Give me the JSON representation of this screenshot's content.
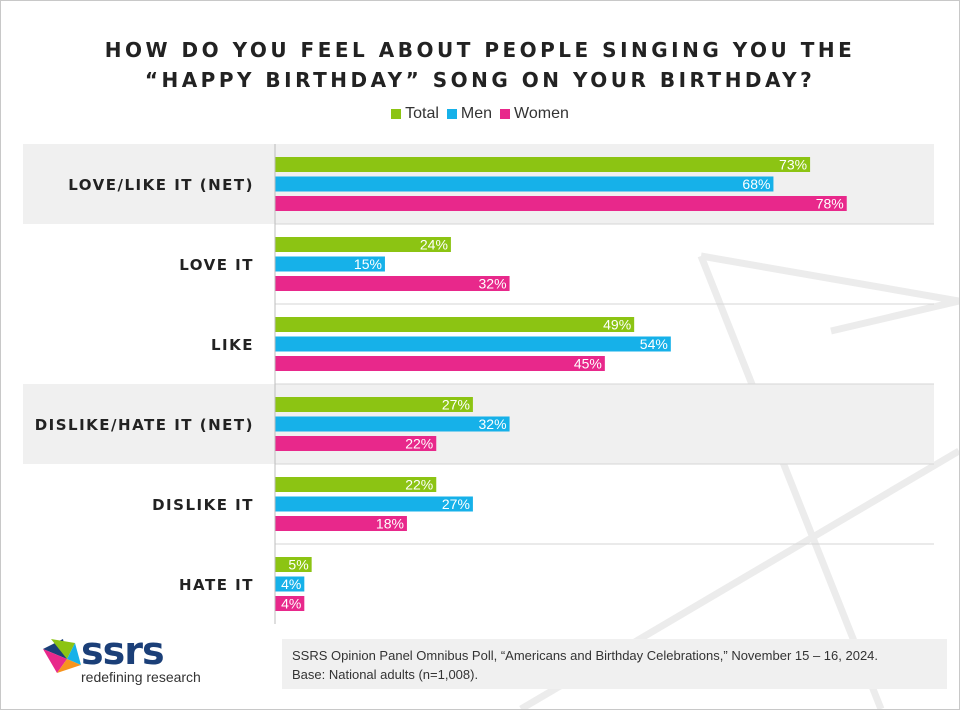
{
  "title_lines": [
    "HOW DO YOU FEEL ABOUT PEOPLE SINGING YOU THE",
    "“HAPPY BIRTHDAY” SONG ON YOUR BIRTHDAY?"
  ],
  "colors": {
    "total": "#8cc413",
    "men": "#16b1e9",
    "women": "#e8288b",
    "band": "#f0f0f0",
    "divider": "#d6d6d6"
  },
  "chart_data": {
    "type": "bar",
    "orientation": "horizontal",
    "categories": [
      "LOVE/LIKE IT (NET)",
      "LOVE IT",
      "LIKE",
      "DISLIKE/HATE IT (NET)",
      "DISLIKE IT",
      "HATE IT"
    ],
    "highlighted_categories": [
      "LOVE/LIKE IT (NET)",
      "DISLIKE/HATE IT (NET)"
    ],
    "series": [
      {
        "name": "Total",
        "values": [
          73,
          24,
          49,
          27,
          22,
          5
        ]
      },
      {
        "name": "Men",
        "values": [
          68,
          15,
          54,
          32,
          27,
          4
        ]
      },
      {
        "name": "Women",
        "values": [
          78,
          32,
          45,
          22,
          18,
          4
        ]
      }
    ],
    "value_suffix": "%",
    "xlim": [
      0,
      100
    ],
    "legend_position": "top-center",
    "grid": false
  },
  "logo": {
    "name": "ssrs",
    "tagline": "redefining research"
  },
  "footnote": {
    "line1": "SSRS Opinion Panel Omnibus Poll, “Americans and Birthday Celebrations,” November 15 – 16, 2024.",
    "line2": "Base: National adults (n=1,008)."
  }
}
